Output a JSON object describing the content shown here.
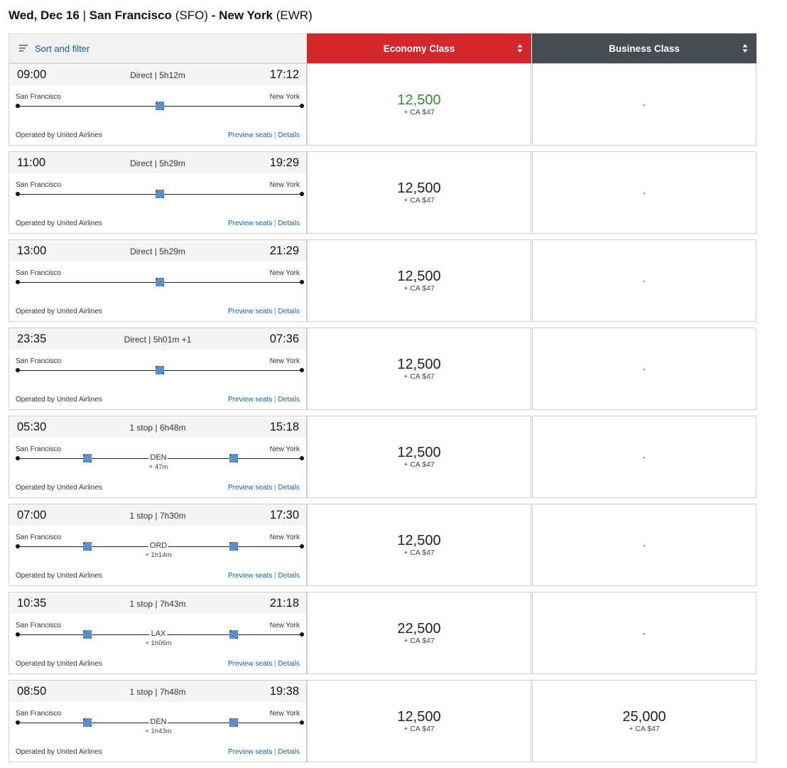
{
  "header": {
    "date": "Wed, Dec 16",
    "separator": "|",
    "origin_city": "San Francisco",
    "origin_code": "(SFO)",
    "dash": "-",
    "dest_city": "New York",
    "dest_code": "(EWR)"
  },
  "columns": {
    "sort_filter_label": "Sort and filter",
    "economy_label": "Economy Class",
    "business_label": "Business Class"
  },
  "colors": {
    "economy": "#d3272c",
    "business": "#474b52",
    "link": "#1b5d9b",
    "selected_price": "#3a8a3a"
  },
  "icons": [
    "filter-icon",
    "sort-arrows-icon",
    "airline-logo-icon"
  ],
  "links": {
    "preview": "Preview seats",
    "sep": "|",
    "details": "Details"
  },
  "flights": [
    {
      "dep": "09:00",
      "arr": "17:12",
      "duration": "Direct | 5h12m",
      "from": "San Francisco",
      "to": "New York",
      "stop": null,
      "layover": null,
      "operated": "Operated by United Airlines",
      "economy_miles": "12,500",
      "economy_tax": "+ CA $47",
      "economy_highlight": true,
      "business_miles": "-",
      "business_tax": ""
    },
    {
      "dep": "11:00",
      "arr": "19:29",
      "duration": "Direct | 5h29m",
      "from": "San Francisco",
      "to": "New York",
      "stop": null,
      "layover": null,
      "operated": "Operated by United Airlines",
      "economy_miles": "12,500",
      "economy_tax": "+ CA $47",
      "economy_highlight": false,
      "business_miles": "-",
      "business_tax": ""
    },
    {
      "dep": "13:00",
      "arr": "21:29",
      "duration": "Direct | 5h29m",
      "from": "San Francisco",
      "to": "New York",
      "stop": null,
      "layover": null,
      "operated": "Operated by United Airlines",
      "economy_miles": "12,500",
      "economy_tax": "+ CA $47",
      "economy_highlight": false,
      "business_miles": "-",
      "business_tax": ""
    },
    {
      "dep": "23:35",
      "arr": "07:36",
      "duration": "Direct | 5h01m +1",
      "from": "San Francisco",
      "to": "New York",
      "stop": null,
      "layover": null,
      "operated": "Operated by United Airlines",
      "economy_miles": "12,500",
      "economy_tax": "+ CA $47",
      "economy_highlight": false,
      "business_miles": "-",
      "business_tax": ""
    },
    {
      "dep": "05:30",
      "arr": "15:18",
      "duration": "1 stop | 6h48m",
      "from": "San Francisco",
      "to": "New York",
      "stop": "DEN",
      "layover": "+ 47m",
      "operated": "Operated by United Airlines",
      "economy_miles": "12,500",
      "economy_tax": "+ CA $47",
      "economy_highlight": false,
      "business_miles": "-",
      "business_tax": ""
    },
    {
      "dep": "07:00",
      "arr": "17:30",
      "duration": "1 stop | 7h30m",
      "from": "San Francisco",
      "to": "New York",
      "stop": "ORD",
      "layover": "+ 1h14m",
      "operated": "Operated by United Airlines",
      "economy_miles": "12,500",
      "economy_tax": "+ CA $47",
      "economy_highlight": false,
      "business_miles": "-",
      "business_tax": ""
    },
    {
      "dep": "10:35",
      "arr": "21:18",
      "duration": "1 stop | 7h43m",
      "from": "San Francisco",
      "to": "New York",
      "stop": "LAX",
      "layover": "+ 1h06m",
      "operated": "Operated by United Airlines",
      "economy_miles": "22,500",
      "economy_tax": "+ CA $47",
      "economy_highlight": false,
      "business_miles": "-",
      "business_tax": ""
    },
    {
      "dep": "08:50",
      "arr": "19:38",
      "duration": "1 stop | 7h48m",
      "from": "San Francisco",
      "to": "New York",
      "stop": "DEN",
      "layover": "+ 1h43m",
      "operated": "Operated by United Airlines",
      "economy_miles": "12,500",
      "economy_tax": "+ CA $47",
      "economy_highlight": false,
      "business_miles": "25,000",
      "business_tax": "+ CA $47"
    }
  ]
}
